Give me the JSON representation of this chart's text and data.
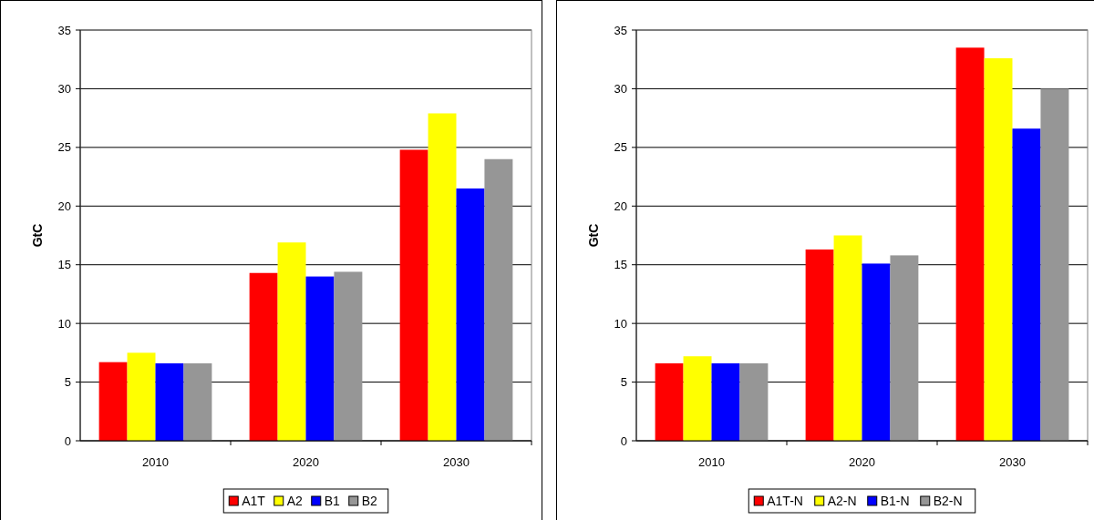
{
  "chart_data": [
    {
      "type": "bar",
      "ylabel": "GtC",
      "categories": [
        "2010",
        "2020",
        "2030"
      ],
      "ylim": [
        0,
        35
      ],
      "yticks": [
        0,
        5,
        10,
        15,
        20,
        25,
        30,
        35
      ],
      "grid": "y",
      "legend": "bottom",
      "series": [
        {
          "name": "A1T",
          "color": "#ff0000",
          "values": [
            6.7,
            14.3,
            24.8
          ]
        },
        {
          "name": "A2",
          "color": "#ffff00",
          "values": [
            7.5,
            16.9,
            27.9
          ]
        },
        {
          "name": "B1",
          "color": "#0000ff",
          "values": [
            6.6,
            14.0,
            21.5
          ]
        },
        {
          "name": "B2",
          "color": "#969696",
          "values": [
            6.6,
            14.4,
            24.0
          ]
        }
      ]
    },
    {
      "type": "bar",
      "ylabel": "GtC",
      "categories": [
        "2010",
        "2020",
        "2030"
      ],
      "ylim": [
        0,
        35
      ],
      "yticks": [
        0,
        5,
        10,
        15,
        20,
        25,
        30,
        35
      ],
      "grid": "y",
      "legend": "bottom",
      "series": [
        {
          "name": "A1T-N",
          "color": "#ff0000",
          "values": [
            6.6,
            16.3,
            33.5
          ]
        },
        {
          "name": "A2-N",
          "color": "#ffff00",
          "values": [
            7.2,
            17.5,
            32.6
          ]
        },
        {
          "name": "B1-N",
          "color": "#0000ff",
          "values": [
            6.6,
            15.1,
            26.6
          ]
        },
        {
          "name": "B2-N",
          "color": "#969696",
          "values": [
            6.6,
            15.8,
            30.0
          ]
        }
      ]
    }
  ]
}
